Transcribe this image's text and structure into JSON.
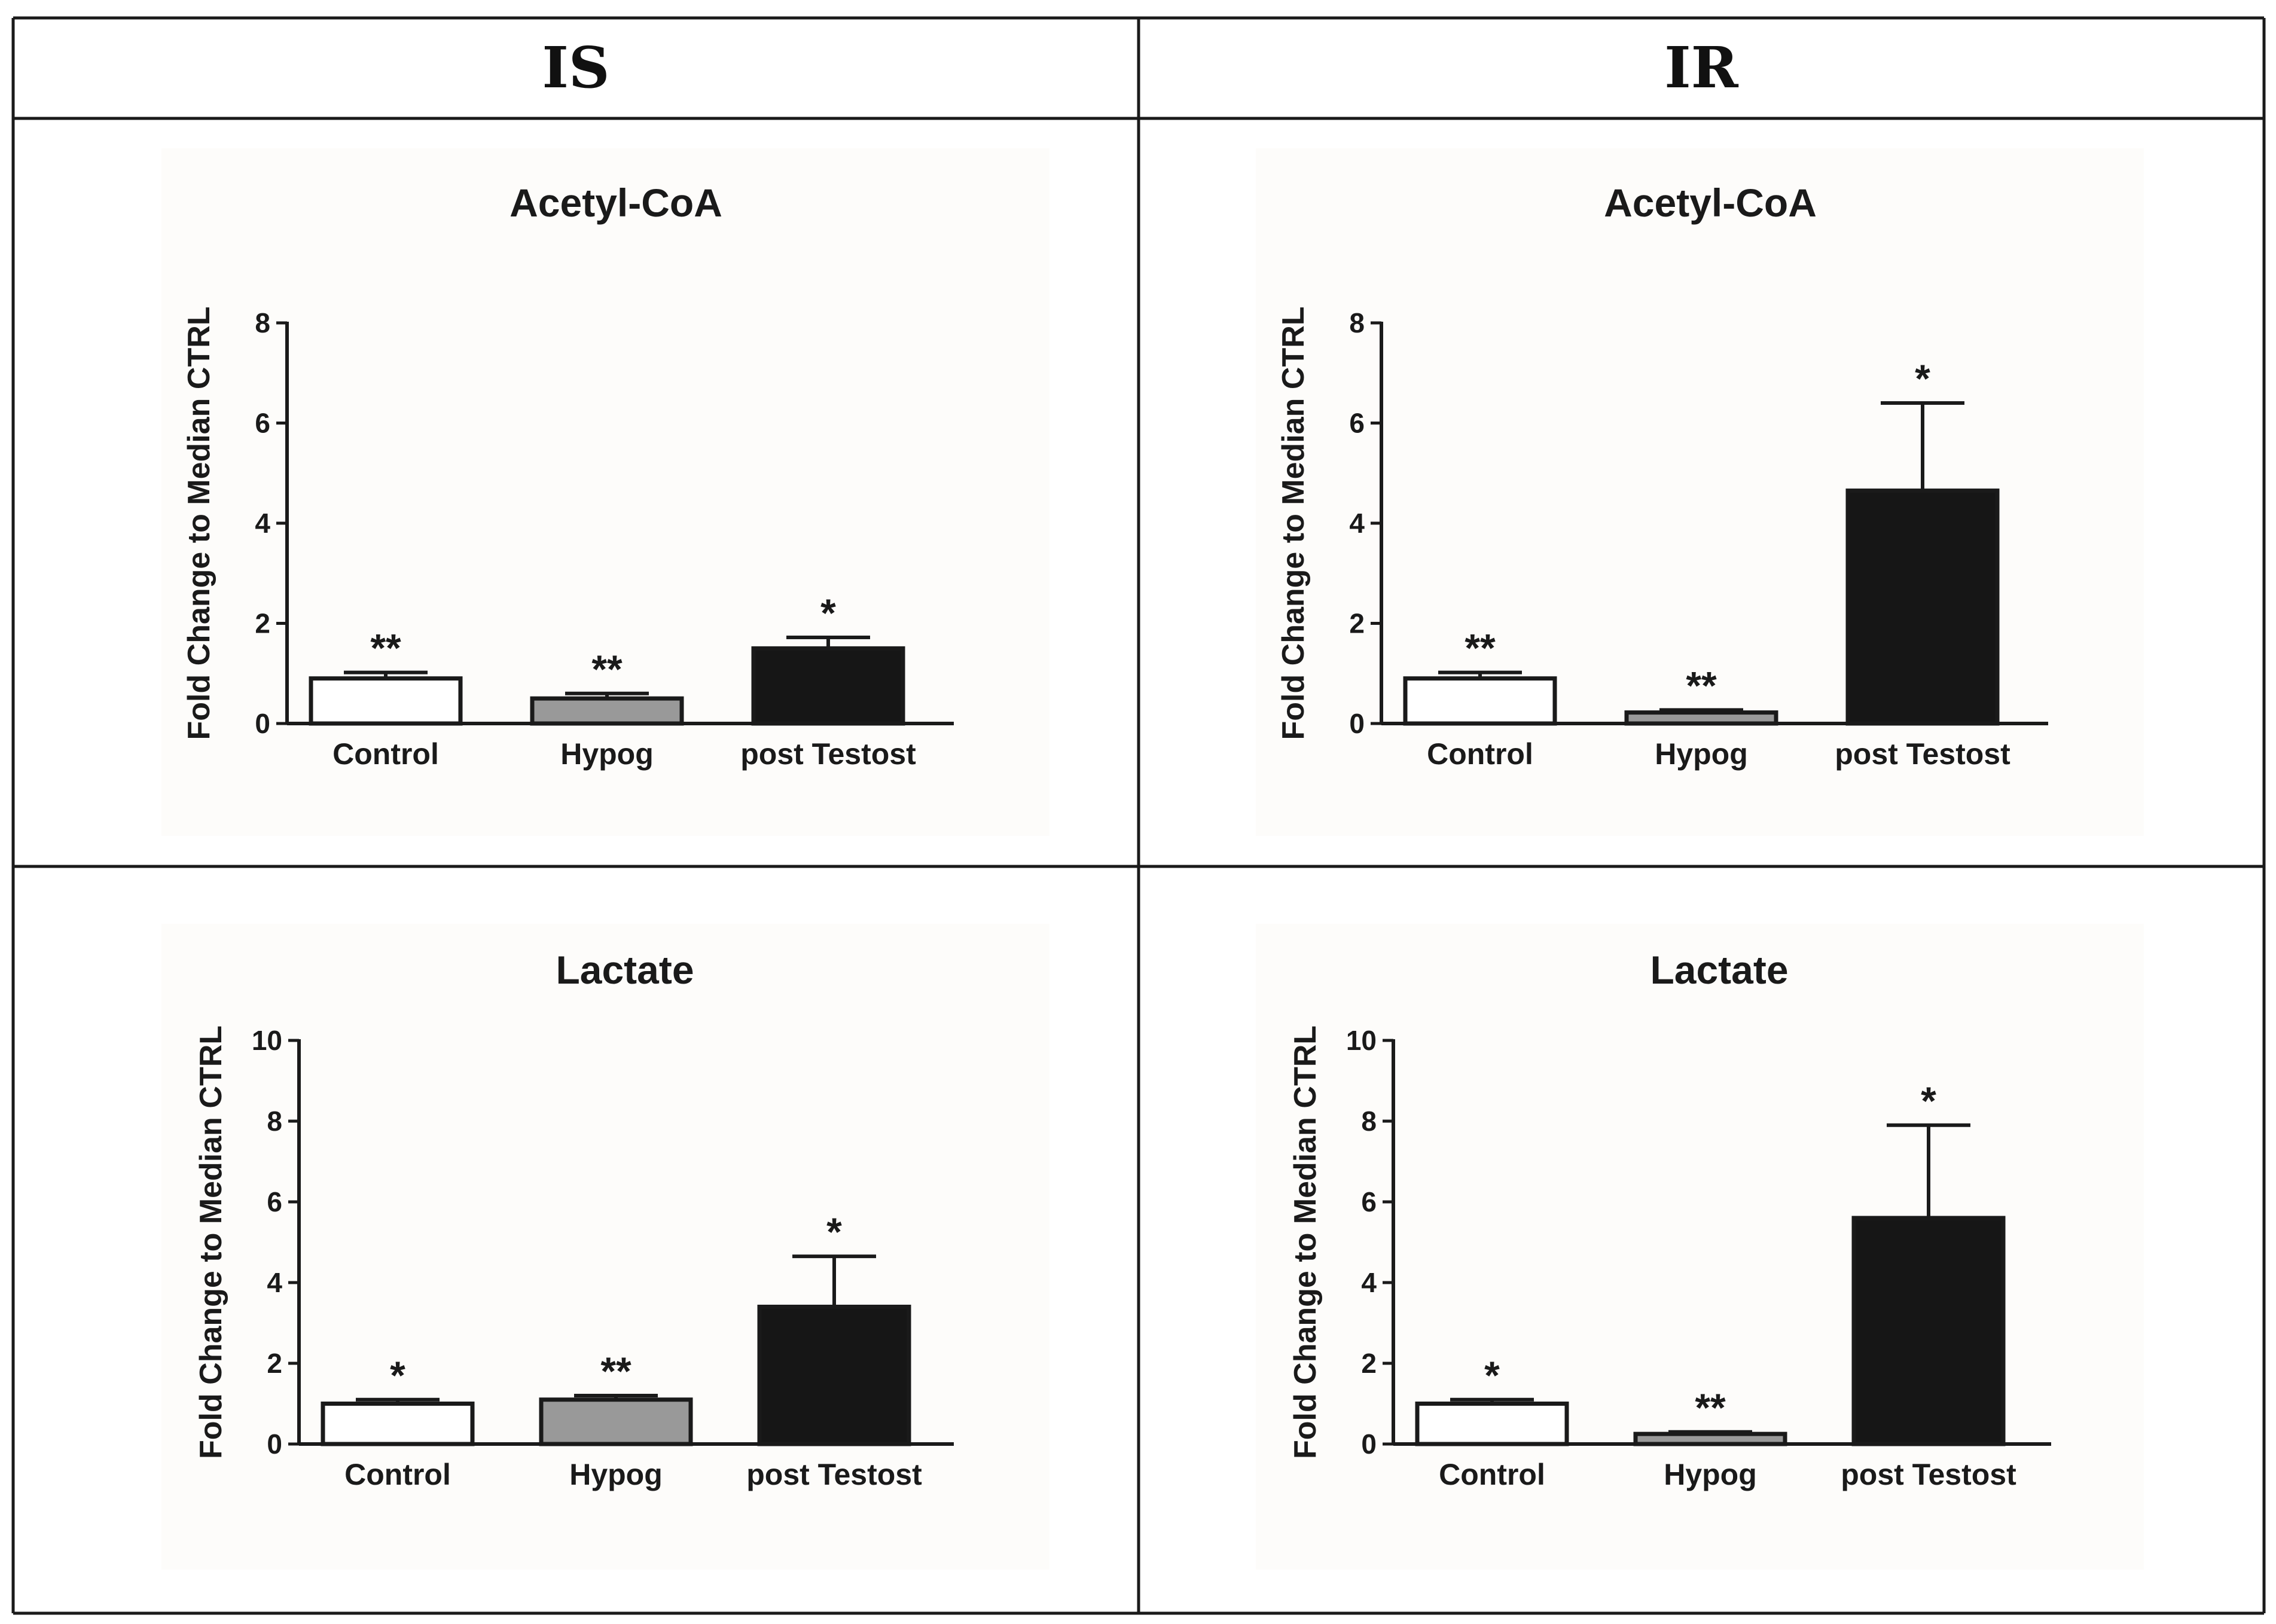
{
  "column_headers": [
    "IS",
    "IR"
  ],
  "colors": {
    "control": "#ffffff",
    "hypog": "#999999",
    "post_testost": "#161616",
    "axis": "#1a1a1a",
    "panel_bg": "#fdfcfa"
  },
  "chart_data": [
    {
      "type": "bar",
      "group": "IS",
      "title": "Acetyl-CoA",
      "ylabel": "Fold  Change to  Median CTRL",
      "xlabel": "",
      "categories": [
        "Control",
        "Hypog",
        "post Testost"
      ],
      "values": [
        0.9,
        0.5,
        1.5
      ],
      "errors": [
        0.12,
        0.1,
        0.22
      ],
      "significance": [
        "**",
        "**",
        "*"
      ],
      "ylim": [
        0,
        8
      ],
      "yticks": [
        0,
        2,
        4,
        6,
        8
      ]
    },
    {
      "type": "bar",
      "group": "IR",
      "title": "Acetyl-CoA",
      "ylabel": "Fold  Change to  Median CTRL",
      "xlabel": "",
      "categories": [
        "Control",
        "Hypog",
        "post Testost"
      ],
      "values": [
        0.9,
        0.22,
        4.65
      ],
      "errors": [
        0.12,
        0.05,
        1.75
      ],
      "significance": [
        "**",
        "**",
        "*"
      ],
      "ylim": [
        0,
        8
      ],
      "yticks": [
        0,
        2,
        4,
        6,
        8
      ]
    },
    {
      "type": "bar",
      "group": "IS",
      "title": "Lactate",
      "ylabel": "Fold  Change to  Median CTRL",
      "xlabel": "",
      "categories": [
        "Control",
        "Hypog",
        "post Testost"
      ],
      "values": [
        1.0,
        1.1,
        3.4
      ],
      "errors": [
        0.1,
        0.1,
        1.25
      ],
      "significance": [
        "*",
        "**",
        "*"
      ],
      "ylim": [
        0,
        10
      ],
      "yticks": [
        0,
        2,
        4,
        6,
        8,
        10
      ]
    },
    {
      "type": "bar",
      "group": "IR",
      "title": "Lactate",
      "ylabel": "Fold  Change to  Median CTRL",
      "xlabel": "",
      "categories": [
        "Control",
        "Hypog",
        "post Testost"
      ],
      "values": [
        1.0,
        0.25,
        5.6
      ],
      "errors": [
        0.1,
        0.05,
        2.3
      ],
      "significance": [
        "*",
        "**",
        "*"
      ],
      "ylim": [
        0,
        10
      ],
      "yticks": [
        0,
        2,
        4,
        6,
        8,
        10
      ]
    }
  ]
}
